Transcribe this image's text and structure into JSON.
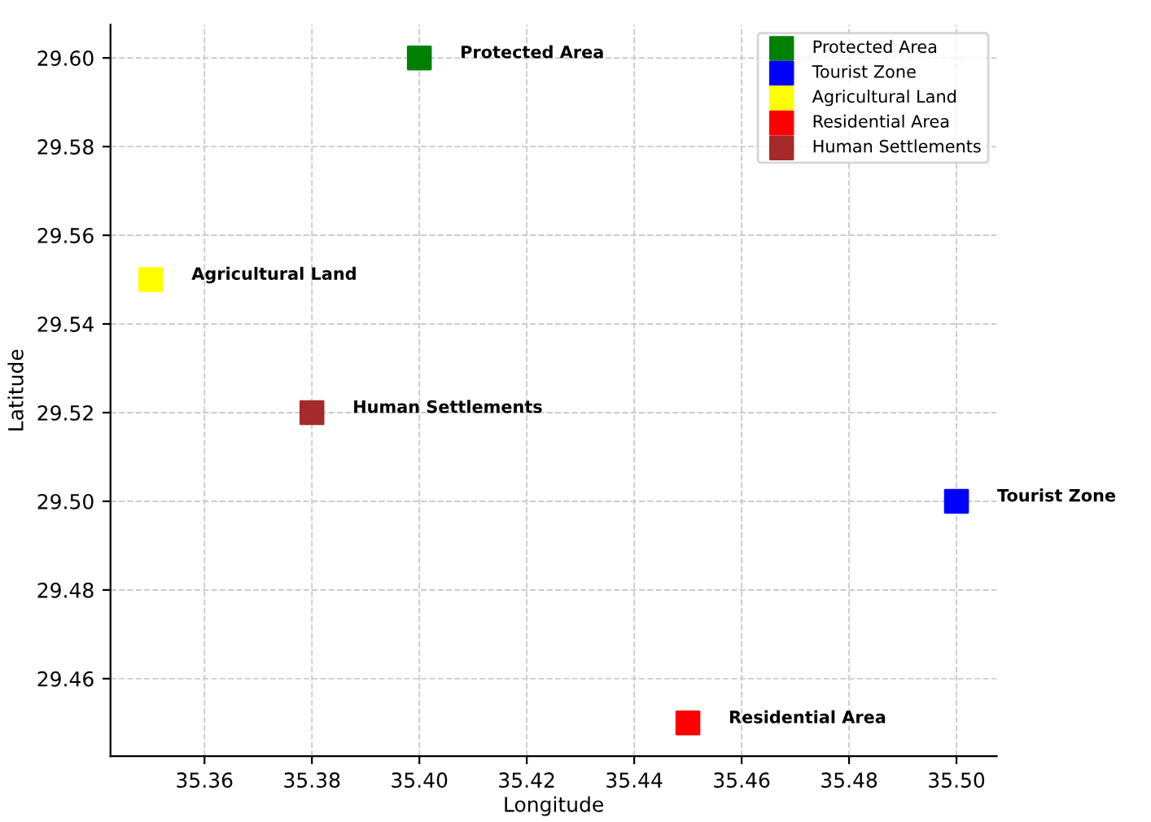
{
  "chart_data": {
    "type": "scatter",
    "xlabel": "Longitude",
    "ylabel": "Latitude",
    "series": [
      {
        "name": "Protected Area",
        "color": "#008000",
        "x": [
          35.4
        ],
        "values": [
          29.6
        ]
      },
      {
        "name": "Tourist Zone",
        "color": "#0000ff",
        "x": [
          35.5
        ],
        "values": [
          29.5
        ]
      },
      {
        "name": "Agricultural Land",
        "color": "#ffff00",
        "x": [
          35.35
        ],
        "values": [
          29.55
        ]
      },
      {
        "name": "Residential Area",
        "color": "#ff0000",
        "x": [
          35.45
        ],
        "values": [
          29.45
        ]
      },
      {
        "name": "Human Settlements",
        "color": "#a52a2a",
        "x": [
          35.38
        ],
        "values": [
          29.52
        ]
      }
    ],
    "annotations": [
      {
        "text": "Protected Area",
        "x": 35.4,
        "y": 29.6
      },
      {
        "text": "Tourist Zone",
        "x": 35.5,
        "y": 29.5
      },
      {
        "text": "Agricultural Land",
        "x": 35.35,
        "y": 29.55
      },
      {
        "text": "Residential Area",
        "x": 35.45,
        "y": 29.45
      },
      {
        "text": "Human Settlements",
        "x": 35.38,
        "y": 29.52
      }
    ],
    "xlim": [
      35.3425,
      35.5075
    ],
    "ylim": [
      29.4425,
      29.6075
    ],
    "xticks": [
      {
        "value": 35.36,
        "label": "35.36"
      },
      {
        "value": 35.38,
        "label": "35.38"
      },
      {
        "value": 35.4,
        "label": "35.40"
      },
      {
        "value": 35.42,
        "label": "35.42"
      },
      {
        "value": 35.44,
        "label": "35.44"
      },
      {
        "value": 35.46,
        "label": "35.46"
      },
      {
        "value": 35.48,
        "label": "35.48"
      },
      {
        "value": 35.5,
        "label": "35.50"
      }
    ],
    "yticks": [
      {
        "value": 29.46,
        "label": "29.46"
      },
      {
        "value": 29.48,
        "label": "29.48"
      },
      {
        "value": 29.5,
        "label": "29.50"
      },
      {
        "value": 29.52,
        "label": "29.52"
      },
      {
        "value": 29.54,
        "label": "29.54"
      },
      {
        "value": 29.56,
        "label": "29.56"
      },
      {
        "value": 29.58,
        "label": "29.58"
      },
      {
        "value": 29.6,
        "label": "29.60"
      }
    ],
    "grid": true,
    "legend": "top right",
    "marker": "square"
  }
}
